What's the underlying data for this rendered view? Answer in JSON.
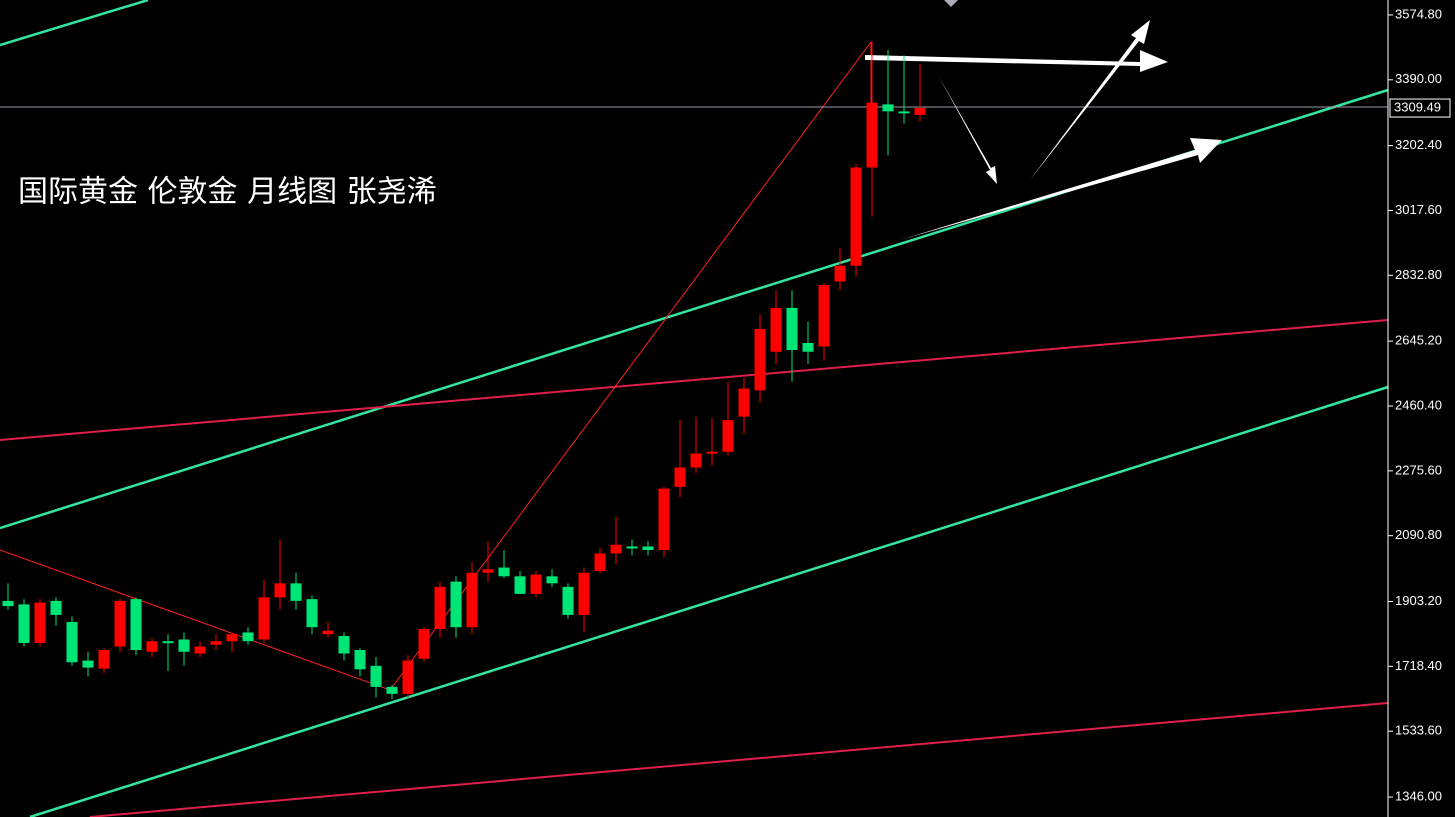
{
  "chart_data": {
    "type": "candlestick",
    "title": "国际黄金 伦敦金 月线图 张尧浠",
    "up_color": "#ff0000",
    "down_color": "#00e676",
    "ylim": [
      1289.1,
      3617.4
    ],
    "yticks": [
      {
        "value": 3574.8,
        "label": "3574.80"
      },
      {
        "value": 3390,
        "label": "3390.00"
      },
      {
        "value": 3202.4,
        "label": "3202.40"
      },
      {
        "value": 3017.6,
        "label": "3017.60"
      },
      {
        "value": 2832.8,
        "label": "2832.80"
      },
      {
        "value": 2645.2,
        "label": "2645.20"
      },
      {
        "value": 2460.4,
        "label": "2460.40"
      },
      {
        "value": 2275.6,
        "label": "2275.60"
      },
      {
        "value": 2090.8,
        "label": "2090.80"
      },
      {
        "value": 1903.2,
        "label": "1903.20"
      },
      {
        "value": 1718.4,
        "label": "1718.40"
      },
      {
        "value": 1533.6,
        "label": "1533.60"
      },
      {
        "value": 1346,
        "label": "1346.00"
      }
    ],
    "current_price": 3309.49,
    "open": [
      1905,
      1895,
      1785,
      1905,
      1845,
      1735,
      1712,
      1775,
      1910,
      1760,
      1790,
      1795,
      1755,
      1780,
      1790,
      1815,
      1795,
      1915,
      1955,
      1910,
      1810,
      1805,
      1765,
      1720,
      1660,
      1640,
      1740,
      1825,
      1960,
      1830,
      1985,
      2000,
      1975,
      1925,
      1975,
      1945,
      1865,
      1990,
      2040,
      2060,
      2060,
      2050,
      2230,
      2285,
      2325,
      2330,
      2430,
      2505,
      2615,
      2740,
      2640,
      2630,
      2815,
      2860,
      3140,
      3320,
      3300,
      3290
    ],
    "high": [
      1955,
      1910,
      1910,
      1915,
      1860,
      1760,
      1770,
      1910,
      1915,
      1800,
      1810,
      1815,
      1790,
      1810,
      1815,
      1830,
      1965,
      2080,
      1985,
      1920,
      1845,
      1815,
      1770,
      1745,
      1665,
      1750,
      1830,
      1960,
      1975,
      2015,
      2075,
      2050,
      1990,
      1990,
      1995,
      1955,
      2000,
      2055,
      2145,
      2080,
      2075,
      2230,
      2420,
      2430,
      2425,
      2530,
      2540,
      2720,
      2790,
      2790,
      2700,
      2810,
      2910,
      3150,
      3500,
      3475,
      3460,
      3435
    ],
    "low": [
      1880,
      1775,
      1775,
      1835,
      1720,
      1690,
      1700,
      1760,
      1750,
      1745,
      1705,
      1720,
      1745,
      1765,
      1760,
      1780,
      1785,
      1880,
      1880,
      1810,
      1800,
      1735,
      1690,
      1630,
      1625,
      1630,
      1730,
      1800,
      1800,
      1810,
      1960,
      1970,
      1925,
      1915,
      1945,
      1855,
      1815,
      1985,
      2010,
      2035,
      2035,
      2030,
      2200,
      2270,
      2290,
      2320,
      2380,
      2470,
      2580,
      2530,
      2580,
      2590,
      2790,
      2830,
      3000,
      3175,
      3265,
      3270
    ],
    "close": [
      1890,
      1785,
      1900,
      1865,
      1730,
      1715,
      1765,
      1905,
      1765,
      1790,
      1785,
      1760,
      1775,
      1790,
      1810,
      1790,
      1915,
      1955,
      1905,
      1830,
      1820,
      1755,
      1710,
      1660,
      1640,
      1735,
      1825,
      1945,
      1830,
      1985,
      1995,
      1975,
      1925,
      1980,
      1955,
      1865,
      1985,
      2040,
      2065,
      2055,
      2050,
      2225,
      2285,
      2325,
      2330,
      2420,
      2510,
      2680,
      2740,
      2620,
      2615,
      2805,
      2860,
      3140,
      3325,
      3300,
      3295,
      3309.49
    ]
  }
}
